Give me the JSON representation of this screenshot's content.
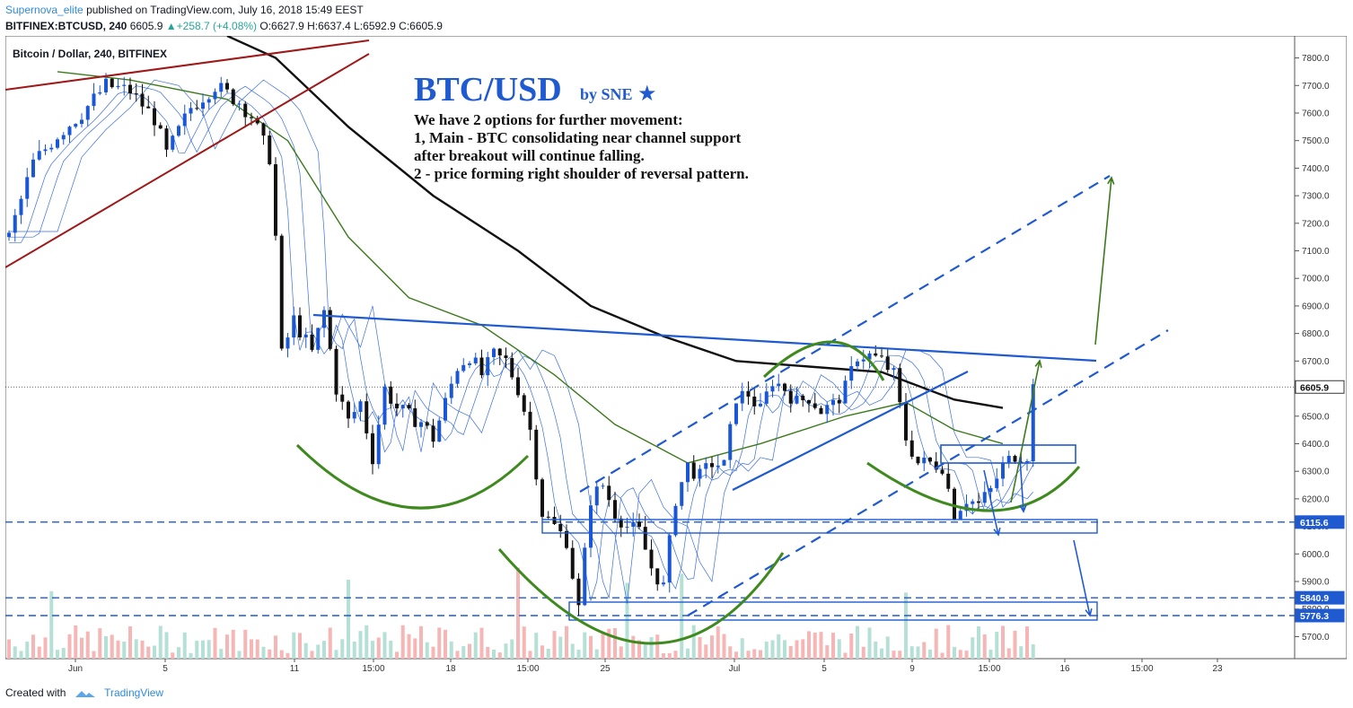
{
  "header": {
    "author": "Supernova_elite",
    "published_text": "published on TradingView.com, July 16, 2018 15:49 EEST",
    "symbol": "BITFINEX:BTCUSD, 240",
    "last": "6605.9",
    "change": "+258.7 (+4.08%)",
    "ohlc": "O:6627.9 H:6637.4 L:6592.9 C:6605.9"
  },
  "footer": {
    "created_with": "Created with",
    "brand": "TradingView"
  },
  "colors": {
    "up": "#26a69a",
    "down": "#ef5350",
    "candle": "#1a57d6",
    "sma_black": "#111111",
    "sma_green": "#3c7a1c",
    "channel_red": "#a01818",
    "pattern": "#1f5ad1",
    "arc_green": "#3f8a1e"
  },
  "chart_data": {
    "type": "candlestick",
    "title": "Bitcoin / Dollar, 240, BITFINEX",
    "annotation_title": "BTC/USD",
    "annotation_byline": "by SNE",
    "annotation_lines": [
      "We have 2 options for further movement:",
      "1, Main - BTC consolidating near channel support",
      "after breakout will continue falling.",
      "2 - price forming right shoulder of reversal pattern."
    ],
    "ylim": [
      5620,
      7880
    ],
    "y_ticks": [
      5700,
      5800,
      5900,
      6000,
      6100,
      6200,
      6300,
      6400,
      6500,
      6600,
      6700,
      6800,
      6900,
      7000,
      7100,
      7200,
      7300,
      7400,
      7500,
      7600,
      7700,
      7800
    ],
    "x_ticks": [
      "Jun",
      "5",
      "11",
      "15:00",
      "18",
      "15:00",
      "25",
      "Jul",
      "5",
      "9",
      "15:00",
      "16",
      "15:00",
      "23"
    ],
    "price_labels": [
      "6605.9",
      "6115.6",
      "5840.9",
      "5776.3"
    ],
    "current_price": 6605.9,
    "support_levels": [
      6115.6,
      5840.9,
      5776.3
    ],
    "close_path": [
      [
        0,
        7150
      ],
      [
        4,
        7420
      ],
      [
        8,
        7520
      ],
      [
        12,
        7600
      ],
      [
        16,
        7700
      ],
      [
        20,
        7680
      ],
      [
        24,
        7580
      ],
      [
        26,
        7450
      ],
      [
        30,
        7620
      ],
      [
        34,
        7700
      ],
      [
        38,
        7640
      ],
      [
        40,
        7590
      ],
      [
        43,
        7440
      ],
      [
        44,
        7150
      ],
      [
        45,
        6720
      ],
      [
        47,
        6850
      ],
      [
        50,
        6730
      ],
      [
        52,
        6880
      ],
      [
        54,
        6600
      ],
      [
        56,
        6480
      ],
      [
        58,
        6550
      ],
      [
        60,
        6350
      ],
      [
        62,
        6600
      ],
      [
        64,
        6530
      ],
      [
        66,
        6500
      ],
      [
        68,
        6480
      ],
      [
        70,
        6420
      ],
      [
        72,
        6550
      ],
      [
        74,
        6680
      ],
      [
        76,
        6720
      ],
      [
        78,
        6650
      ],
      [
        80,
        6720
      ],
      [
        82,
        6700
      ],
      [
        84,
        6600
      ],
      [
        86,
        6450
      ],
      [
        88,
        6150
      ],
      [
        90,
        6100
      ],
      [
        92,
        6050
      ],
      [
        94,
        5800
      ],
      [
        96,
        6200
      ],
      [
        98,
        6250
      ],
      [
        100,
        6150
      ],
      [
        102,
        6100
      ],
      [
        104,
        6080
      ],
      [
        106,
        5950
      ],
      [
        108,
        5880
      ],
      [
        110,
        6200
      ],
      [
        112,
        6320
      ],
      [
        114,
        6280
      ],
      [
        116,
        6330
      ],
      [
        118,
        6320
      ],
      [
        120,
        6570
      ],
      [
        122,
        6580
      ],
      [
        124,
        6520
      ],
      [
        126,
        6630
      ],
      [
        128,
        6600
      ],
      [
        130,
        6550
      ],
      [
        132,
        6570
      ],
      [
        134,
        6520
      ],
      [
        136,
        6540
      ],
      [
        138,
        6600
      ],
      [
        140,
        6720
      ],
      [
        142,
        6720
      ],
      [
        144,
        6700
      ],
      [
        146,
        6650
      ],
      [
        148,
        6420
      ],
      [
        150,
        6330
      ],
      [
        152,
        6330
      ],
      [
        154,
        6320
      ],
      [
        156,
        6150
      ],
      [
        158,
        6200
      ],
      [
        160,
        6180
      ],
      [
        162,
        6230
      ],
      [
        164,
        6320
      ],
      [
        166,
        6360
      ],
      [
        168,
        6360
      ],
      [
        169,
        6606
      ]
    ],
    "sma_black_path": [
      [
        36,
        7880
      ],
      [
        44,
        7800
      ],
      [
        56,
        7550
      ],
      [
        70,
        7300
      ],
      [
        84,
        7100
      ],
      [
        96,
        6900
      ],
      [
        108,
        6790
      ],
      [
        120,
        6700
      ],
      [
        132,
        6680
      ],
      [
        144,
        6660
      ],
      [
        156,
        6560
      ],
      [
        164,
        6530
      ]
    ],
    "sma_green_path": [
      [
        8,
        7750
      ],
      [
        20,
        7720
      ],
      [
        36,
        7650
      ],
      [
        46,
        7500
      ],
      [
        56,
        7150
      ],
      [
        66,
        6930
      ],
      [
        78,
        6830
      ],
      [
        90,
        6650
      ],
      [
        100,
        6470
      ],
      [
        112,
        6330
      ],
      [
        124,
        6400
      ],
      [
        138,
        6500
      ],
      [
        148,
        6550
      ],
      [
        156,
        6450
      ],
      [
        164,
        6400
      ]
    ],
    "volume_max": 2000,
    "volume_note": "volume bars drawn at bottom, red/green"
  }
}
